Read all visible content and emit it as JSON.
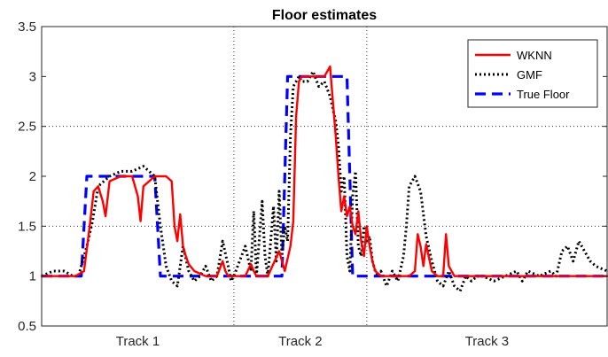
{
  "chart_data": {
    "type": "line",
    "title": "Floor estimates",
    "xlabel": "",
    "ylabel": "",
    "xlim": [
      0,
      1
    ],
    "ylim": [
      0.5,
      3.5
    ],
    "yticks": [
      "0.5",
      "1",
      "1.5",
      "2",
      "2.5",
      "3",
      "3.5"
    ],
    "categories": [
      "Track 1",
      "Track 2",
      "Track 3"
    ],
    "track_boundaries": [
      0.34,
      0.575
    ],
    "grid": "horizontal dotted at 1.5 and 2.5; vertical dotted at track boundaries",
    "legend_position": "top-right",
    "series": [
      {
        "name": "WKNN",
        "color": "#ff0000",
        "style": "solid",
        "x": [
          0,
          0.06,
          0.075,
          0.085,
          0.092,
          0.1,
          0.108,
          0.113,
          0.12,
          0.14,
          0.16,
          0.17,
          0.175,
          0.18,
          0.2,
          0.22,
          0.23,
          0.235,
          0.24,
          0.245,
          0.25,
          0.255,
          0.26,
          0.27,
          0.29,
          0.31,
          0.32,
          0.325,
          0.33,
          0.34,
          0.36,
          0.37,
          0.375,
          0.38,
          0.39,
          0.4,
          0.42,
          0.43,
          0.44,
          0.445,
          0.45,
          0.455,
          0.46,
          0.465,
          0.47,
          0.475,
          0.48,
          0.49,
          0.5,
          0.51,
          0.52,
          0.525,
          0.53,
          0.535,
          0.54,
          0.545,
          0.55,
          0.555,
          0.56,
          0.565,
          0.57,
          0.575,
          0.58,
          0.585,
          0.59,
          0.6,
          0.62,
          0.64,
          0.65,
          0.66,
          0.665,
          0.67,
          0.675,
          0.68,
          0.69,
          0.7,
          0.71,
          0.715,
          0.72,
          0.73,
          0.75,
          1.0
        ],
        "y": [
          1,
          1,
          1.05,
          1.5,
          1.85,
          1.9,
          1.75,
          1.6,
          1.95,
          2.0,
          2.0,
          1.8,
          1.55,
          1.9,
          2.0,
          2.0,
          1.95,
          1.5,
          1.35,
          1.62,
          1.3,
          1.2,
          1.12,
          1.05,
          1.0,
          1.0,
          1.15,
          1.05,
          1.0,
          1.0,
          1.0,
          1.12,
          1.05,
          1.0,
          1.0,
          1.0,
          1.25,
          1.05,
          1.3,
          1.55,
          2.6,
          2.95,
          3.0,
          3.0,
          3.0,
          3.0,
          3.0,
          3.0,
          3.0,
          3.1,
          2.4,
          2.0,
          1.65,
          1.8,
          1.6,
          1.7,
          1.5,
          1.42,
          1.65,
          1.35,
          1.2,
          1.5,
          1.3,
          1.15,
          1.05,
          1.0,
          1.0,
          1.0,
          1.0,
          1.05,
          1.42,
          1.3,
          1.1,
          1.32,
          1.05,
          1.0,
          1.0,
          1.42,
          1.1,
          1.0,
          1.0,
          1.0
        ]
      },
      {
        "name": "GMF",
        "color": "#000000",
        "style": "dotted",
        "x": [
          0,
          0.02,
          0.04,
          0.055,
          0.065,
          0.08,
          0.09,
          0.1,
          0.11,
          0.12,
          0.14,
          0.16,
          0.18,
          0.2,
          0.21,
          0.22,
          0.23,
          0.24,
          0.25,
          0.26,
          0.27,
          0.28,
          0.29,
          0.3,
          0.31,
          0.32,
          0.33,
          0.335,
          0.34,
          0.35,
          0.36,
          0.37,
          0.375,
          0.38,
          0.39,
          0.395,
          0.4,
          0.41,
          0.415,
          0.42,
          0.425,
          0.43,
          0.435,
          0.44,
          0.445,
          0.45,
          0.455,
          0.46,
          0.47,
          0.48,
          0.49,
          0.5,
          0.51,
          0.52,
          0.525,
          0.53,
          0.535,
          0.54,
          0.545,
          0.55,
          0.555,
          0.56,
          0.565,
          0.57,
          0.575,
          0.58,
          0.585,
          0.59,
          0.595,
          0.6,
          0.61,
          0.62,
          0.63,
          0.64,
          0.645,
          0.65,
          0.66,
          0.67,
          0.68,
          0.69,
          0.7,
          0.71,
          0.72,
          0.73,
          0.74,
          0.75,
          0.76,
          0.77,
          0.78,
          0.8,
          0.82,
          0.84,
          0.85,
          0.86,
          0.88,
          0.9,
          0.91,
          0.92,
          0.93,
          0.94,
          0.95,
          0.96,
          0.97,
          0.98,
          1.0
        ],
        "y": [
          1.0,
          1.05,
          1.05,
          1.0,
          1.0,
          1.3,
          1.55,
          1.9,
          1.95,
          2.0,
          2.05,
          2.05,
          2.1,
          2.0,
          1.5,
          1.1,
          0.95,
          0.9,
          1.3,
          1.05,
          0.95,
          1.0,
          1.1,
          0.95,
          1.0,
          1.35,
          1.1,
          0.95,
          1.0,
          1.15,
          1.3,
          1.05,
          1.65,
          1.0,
          1.75,
          1.2,
          1.0,
          1.7,
          1.15,
          1.85,
          1.2,
          1.5,
          1.35,
          2.4,
          2.9,
          2.95,
          3.0,
          2.95,
          2.95,
          3.05,
          2.9,
          2.95,
          2.8,
          2.55,
          2.3,
          1.85,
          2.0,
          1.2,
          1.05,
          1.8,
          2.05,
          1.3,
          1.2,
          1.5,
          1.35,
          1.4,
          1.15,
          1.05,
          1.0,
          1.05,
          0.9,
          1.05,
          0.95,
          1.2,
          1.5,
          1.9,
          2.0,
          1.85,
          1.4,
          1.15,
          0.95,
          0.9,
          1.05,
          0.9,
          0.85,
          1.0,
          0.95,
          1.0,
          1.0,
          0.95,
          1.0,
          1.05,
          0.95,
          1.05,
          1.0,
          1.05,
          1.0,
          1.25,
          1.3,
          1.15,
          1.35,
          1.25,
          1.15,
          1.1,
          1.05
        ]
      },
      {
        "name": "True Floor",
        "color": "#0000ff",
        "style": "dashed",
        "x": [
          0,
          0.07,
          0.08,
          0.2,
          0.21,
          0.425,
          0.435,
          0.54,
          0.55,
          1.0
        ],
        "y": [
          1,
          1,
          2,
          2,
          1,
          1,
          3,
          3,
          1,
          1
        ]
      }
    ]
  }
}
